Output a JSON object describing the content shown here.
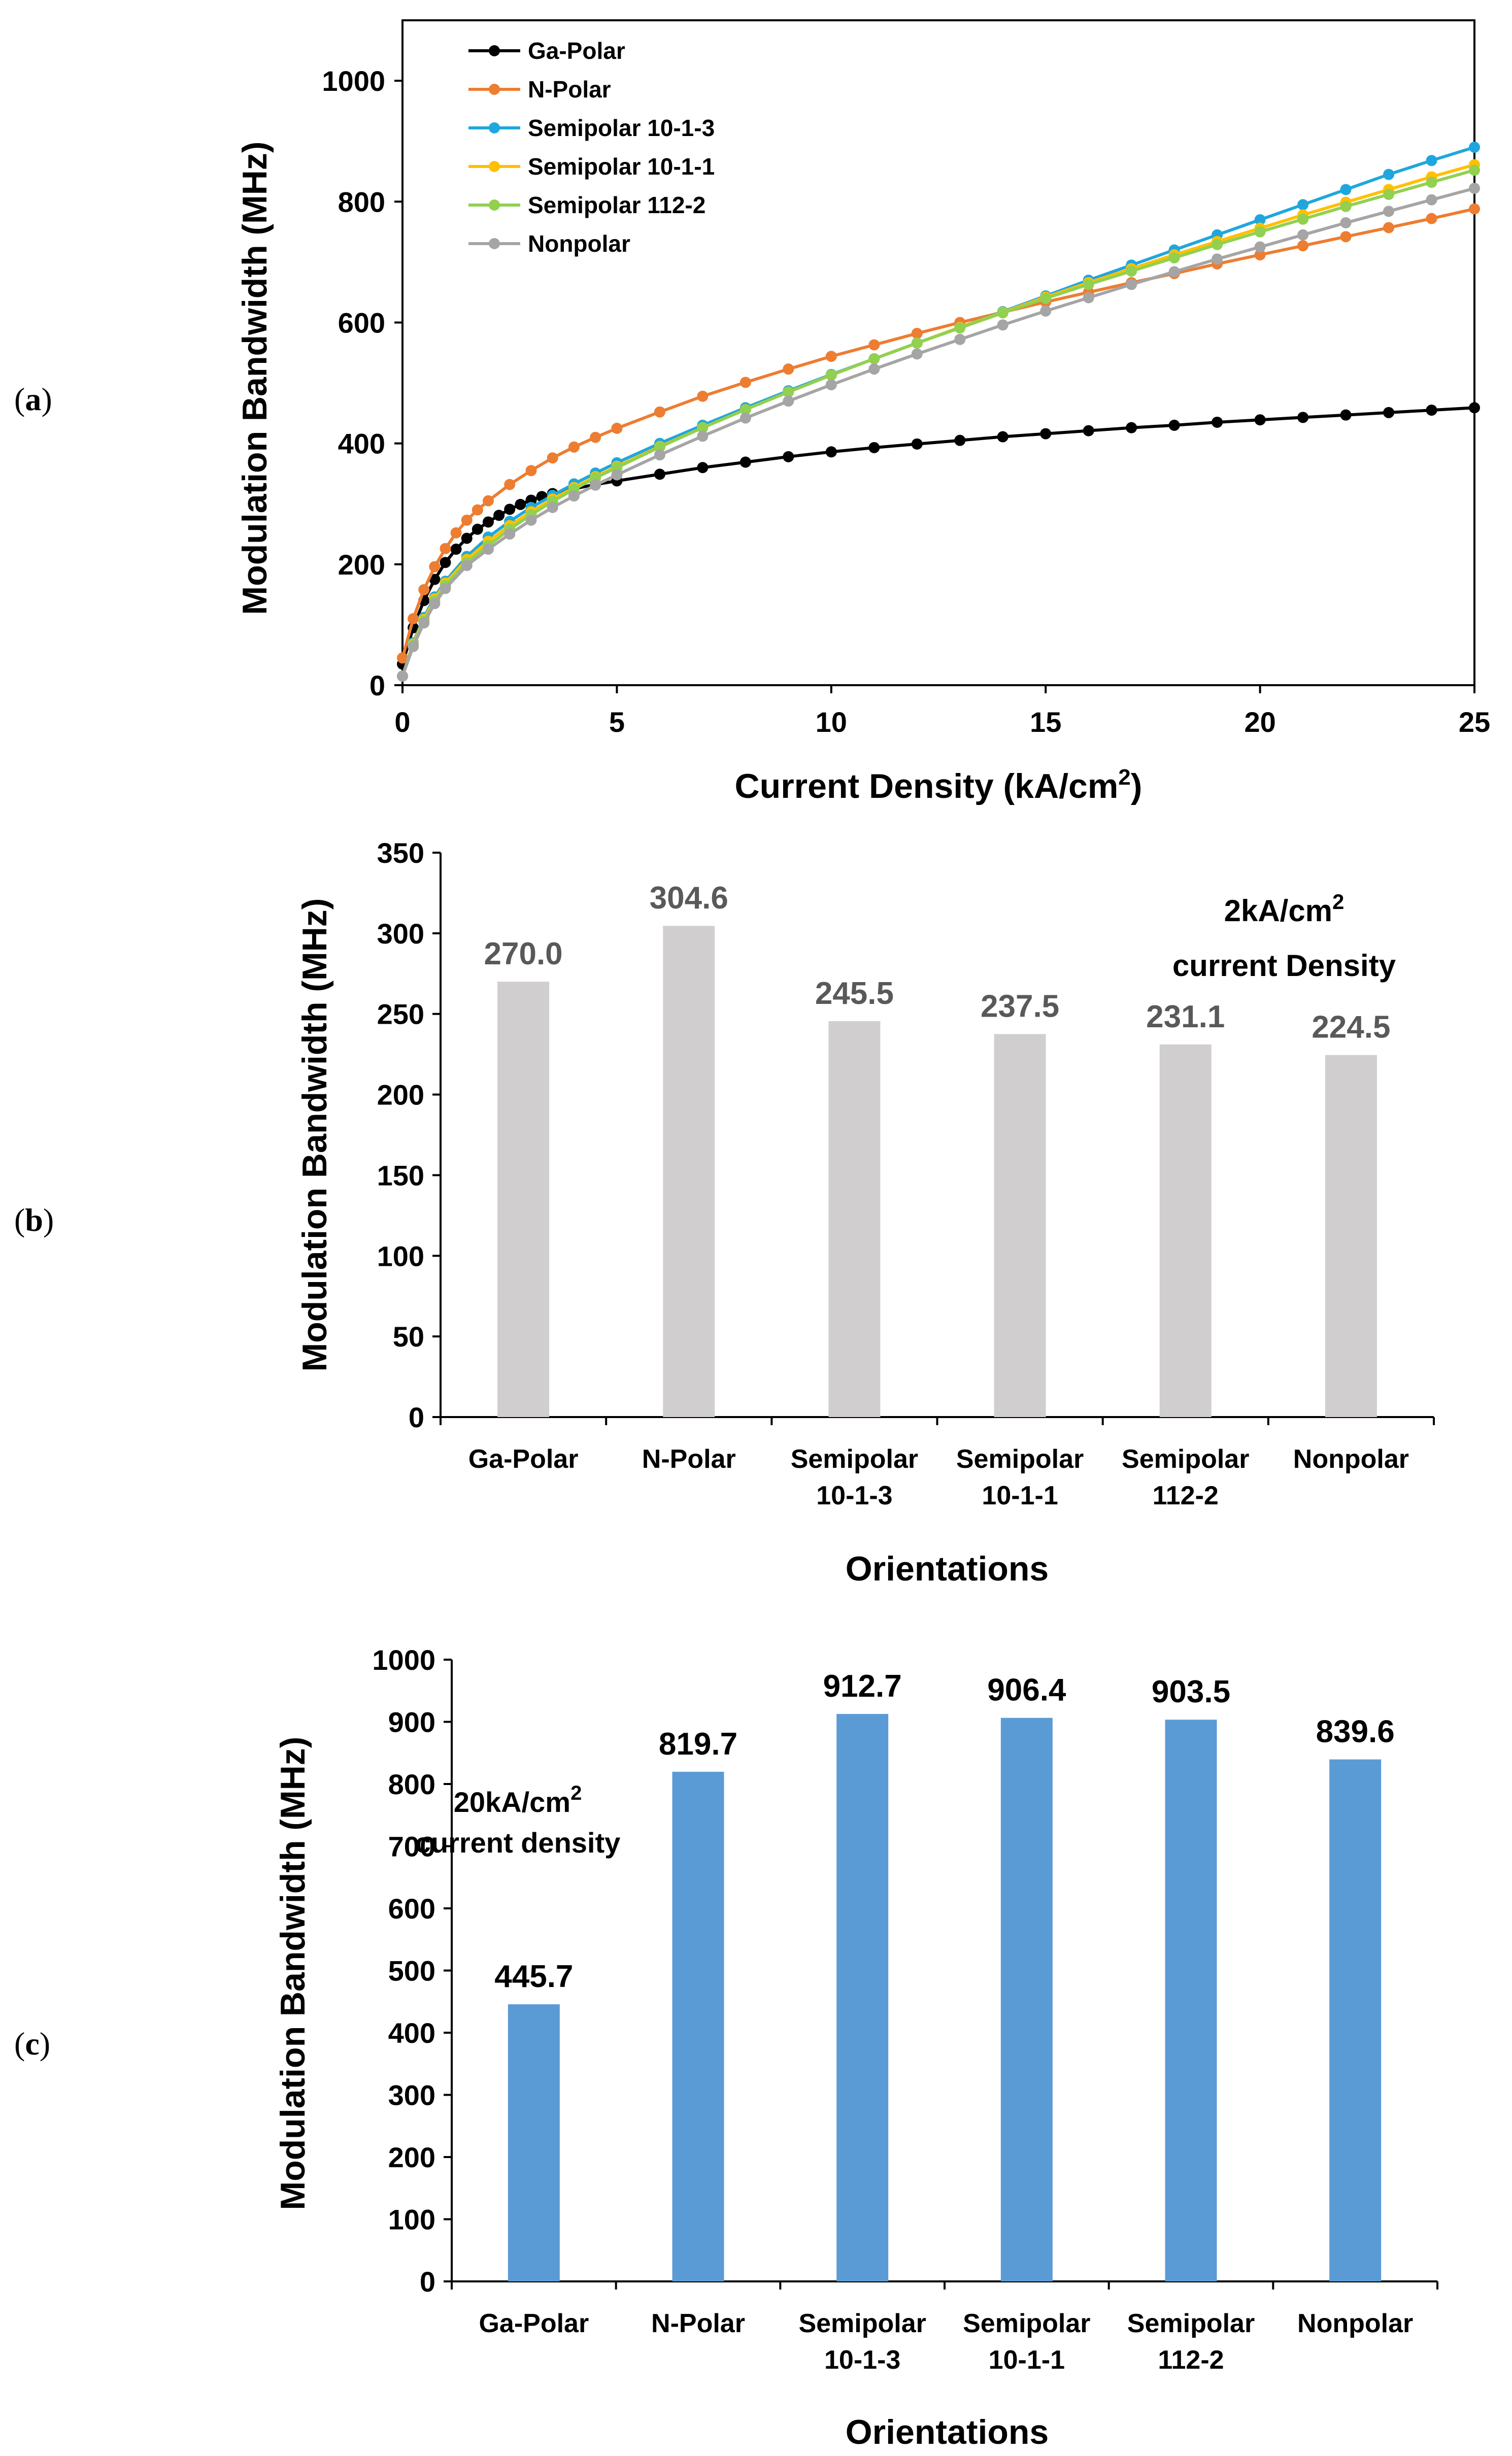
{
  "chart_data": [
    {
      "panel": "(a)",
      "type": "line",
      "xlabel": "Current Density (kA/cm",
      "xlabel_sup": "2",
      "xlabel_end": ")",
      "ylabel": "Modulation Bandwidth (MHz)",
      "xlim": [
        0,
        25
      ],
      "ylim": [
        0,
        1000
      ],
      "xticks": [
        "0",
        "5",
        "10",
        "15",
        "20",
        "25"
      ],
      "yticks": [
        "0",
        "200",
        "400",
        "600",
        "800",
        "1000"
      ],
      "legend_position": "top-left",
      "grid": false,
      "series": [
        {
          "name": "Ga-Polar",
          "color": "#000000",
          "x": [
            0,
            0.25,
            0.5,
            0.75,
            1,
            1.25,
            1.5,
            1.75,
            2,
            2.25,
            2.5,
            2.75,
            3,
            3.25,
            3.5,
            4,
            4.5,
            5,
            6,
            7,
            8,
            9,
            10,
            11,
            12,
            13,
            14,
            15,
            16,
            17,
            18,
            19,
            20,
            21,
            22,
            23,
            24,
            25
          ],
          "y": [
            35,
            95,
            140,
            175,
            203,
            225,
            243,
            258,
            270,
            281,
            291,
            299,
            306,
            312,
            317,
            325,
            332,
            338,
            349,
            360,
            369,
            378,
            386,
            393,
            399,
            405,
            411,
            416,
            421,
            426,
            430,
            435,
            439,
            443,
            447,
            451,
            455,
            459
          ]
        },
        {
          "name": "N-Polar",
          "color": "#ED7D31",
          "x": [
            0,
            0.25,
            0.5,
            0.75,
            1,
            1.25,
            1.5,
            1.75,
            2,
            2.5,
            3,
            3.5,
            4,
            4.5,
            5,
            6,
            7,
            8,
            9,
            10,
            11,
            12,
            13,
            14,
            15,
            16,
            17,
            18,
            19,
            20,
            21,
            22,
            23,
            24,
            25
          ],
          "y": [
            45,
            110,
            158,
            196,
            226,
            252,
            273,
            290,
            305,
            332,
            355,
            376,
            394,
            410,
            425,
            452,
            478,
            501,
            523,
            544,
            563,
            582,
            600,
            617,
            634,
            650,
            666,
            681,
            697,
            712,
            727,
            742,
            757,
            772,
            788
          ]
        },
        {
          "name": "Semipolar 10-1-3",
          "color": "#1FA7DD",
          "x": [
            0,
            0.25,
            0.5,
            0.75,
            1,
            1.5,
            2,
            2.5,
            3,
            3.5,
            4,
            4.5,
            5,
            6,
            7,
            8,
            9,
            10,
            11,
            12,
            13,
            14,
            15,
            16,
            17,
            18,
            19,
            20,
            21,
            22,
            23,
            24,
            25
          ],
          "y": [
            15,
            70,
            112,
            146,
            172,
            213,
            245,
            271,
            294,
            314,
            333,
            351,
            368,
            400,
            430,
            459,
            487,
            514,
            540,
            566,
            592,
            618,
            644,
            670,
            695,
            720,
            745,
            770,
            795,
            820,
            845,
            868,
            890
          ]
        },
        {
          "name": "Semipolar 10-1-1",
          "color": "#FFC000",
          "x": [
            0,
            0.25,
            0.5,
            0.75,
            1,
            1.5,
            2,
            2.5,
            3,
            3.5,
            4,
            4.5,
            5,
            6,
            7,
            8,
            9,
            10,
            11,
            12,
            13,
            14,
            15,
            16,
            17,
            18,
            19,
            20,
            21,
            22,
            23,
            24,
            25
          ],
          "y": [
            15,
            68,
            109,
            143,
            169,
            208,
            238,
            264,
            287,
            308,
            327,
            345,
            362,
            395,
            426,
            456,
            485,
            513,
            540,
            566,
            592,
            617,
            642,
            666,
            689,
            712,
            734,
            756,
            778,
            799,
            820,
            841,
            861
          ]
        },
        {
          "name": "Semipolar 112-2",
          "color": "#92D050",
          "x": [
            0,
            0.25,
            0.5,
            0.75,
            1,
            1.5,
            2,
            2.5,
            3,
            3.5,
            4,
            4.5,
            5,
            6,
            7,
            8,
            9,
            10,
            11,
            12,
            13,
            14,
            15,
            16,
            17,
            18,
            19,
            20,
            21,
            22,
            23,
            24,
            25
          ],
          "y": [
            15,
            66,
            106,
            139,
            165,
            203,
            231,
            258,
            282,
            304,
            324,
            343,
            360,
            394,
            426,
            456,
            485,
            513,
            540,
            566,
            591,
            616,
            640,
            663,
            685,
            707,
            729,
            750,
            771,
            792,
            812,
            832,
            852
          ]
        },
        {
          "name": "Nonpolar",
          "color": "#A5A5A5",
          "x": [
            0,
            0.25,
            0.5,
            0.75,
            1,
            1.5,
            2,
            2.5,
            3,
            3.5,
            4,
            4.5,
            5,
            6,
            7,
            8,
            9,
            10,
            11,
            12,
            13,
            14,
            15,
            16,
            17,
            18,
            19,
            20,
            21,
            22,
            23,
            24,
            25
          ],
          "y": [
            15,
            64,
            103,
            135,
            160,
            198,
            225,
            250,
            273,
            294,
            313,
            331,
            348,
            381,
            412,
            442,
            470,
            497,
            523,
            548,
            572,
            596,
            619,
            641,
            663,
            684,
            705,
            725,
            745,
            765,
            784,
            803,
            822
          ]
        }
      ]
    },
    {
      "panel": "(b)",
      "type": "bar",
      "xlabel": "Orientations",
      "ylabel": "Modulation Bandwidth (MHz)",
      "ylim": [
        0,
        350
      ],
      "yticks": [
        "0",
        "50",
        "100",
        "150",
        "200",
        "250",
        "300",
        "350"
      ],
      "categories": [
        [
          "Ga-Polar"
        ],
        [
          "N-Polar"
        ],
        [
          "Semipolar",
          "10-1-3"
        ],
        [
          "Semipolar",
          "10-1-1"
        ],
        [
          "Semipolar",
          "112-2"
        ],
        [
          "Nonpolar"
        ]
      ],
      "values": [
        270.0,
        304.6,
        245.5,
        237.5,
        231.1,
        224.5
      ],
      "data_labels": [
        "270.0",
        "304.6",
        "245.5",
        "237.5",
        "231.1",
        "224.5"
      ],
      "bar_color": "#D0CECE",
      "annotation": {
        "line1": "2kA/cm",
        "sup": "2",
        "line2": "current Density"
      }
    },
    {
      "panel": "(c)",
      "type": "bar",
      "xlabel": "Orientations",
      "ylabel": "Modulation Bandwidth (MHz)",
      "ylim": [
        0,
        1000
      ],
      "yticks": [
        "0",
        "100",
        "200",
        "300",
        "400",
        "500",
        "600",
        "700",
        "800",
        "900",
        "1000"
      ],
      "categories": [
        [
          "Ga-Polar"
        ],
        [
          "N-Polar"
        ],
        [
          "Semipolar",
          "10-1-3"
        ],
        [
          "Semipolar",
          "10-1-1"
        ],
        [
          "Semipolar",
          "112-2"
        ],
        [
          "Nonpolar"
        ]
      ],
      "values": [
        445.7,
        819.7,
        912.7,
        906.4,
        903.5,
        839.6
      ],
      "data_labels": [
        "445.7",
        "819.7",
        "912.7",
        "906.4",
        "903.5",
        "839.6"
      ],
      "bar_color": "#5B9BD5",
      "annotation": {
        "line1": "20kA/cm",
        "sup": "2",
        "line2": "current density"
      }
    }
  ]
}
